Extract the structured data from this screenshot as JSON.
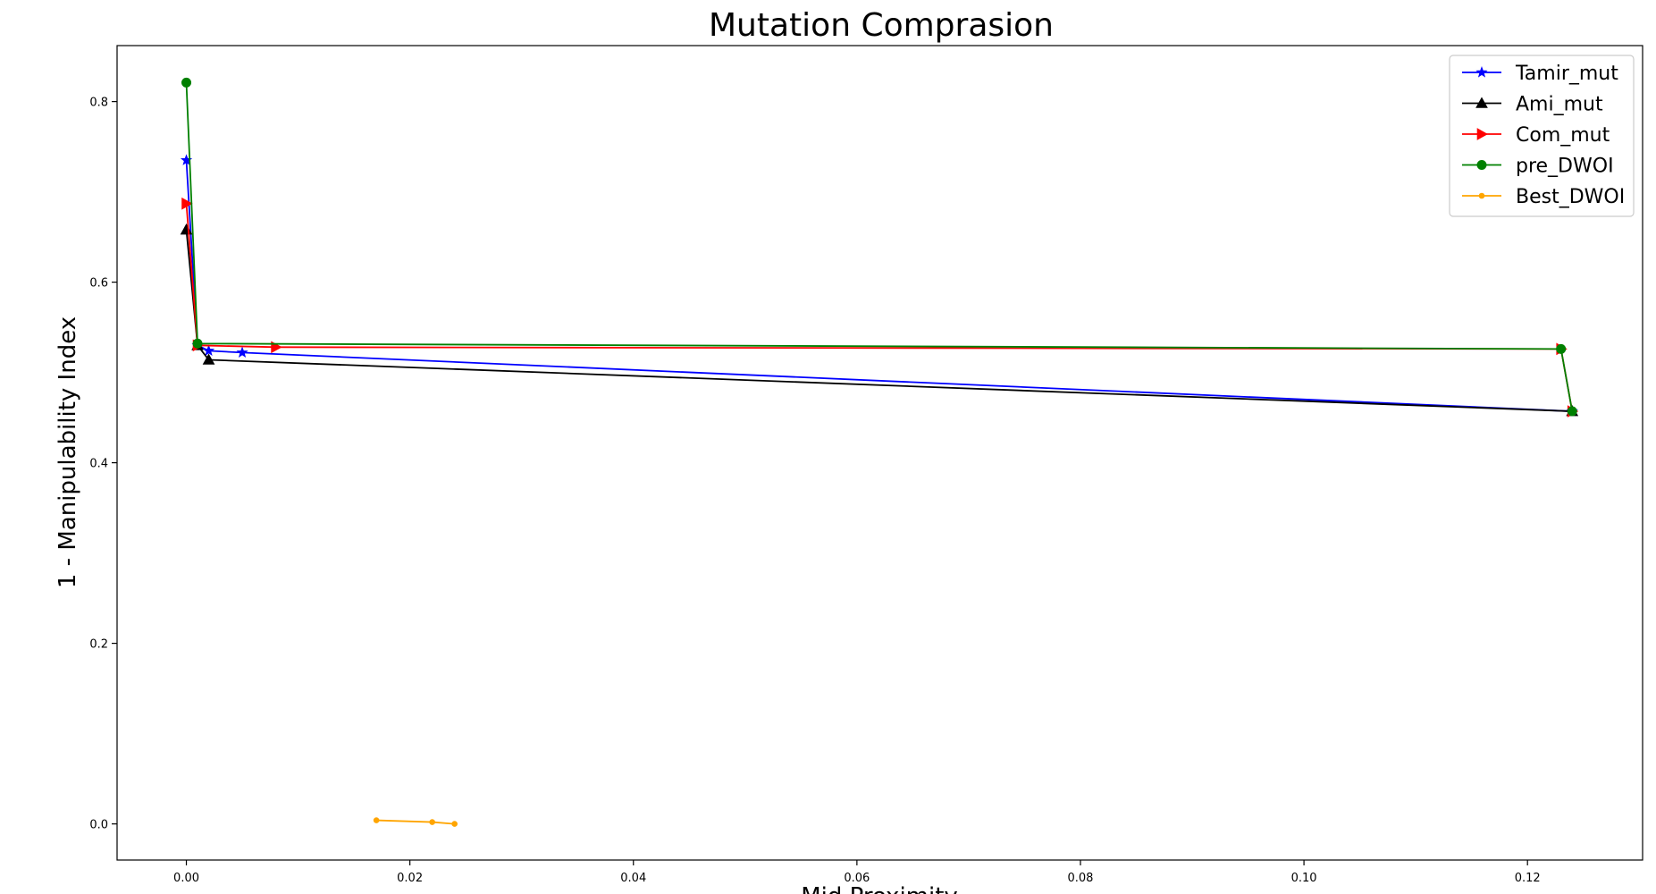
{
  "chart_data": {
    "type": "line",
    "title": "Mutation Comprasion",
    "xlabel": "Mid Proximity",
    "ylabel": "1 - Manipulability Index",
    "xlim": [
      -0.0062,
      0.1303
    ],
    "ylim": [
      -0.04,
      0.862
    ],
    "xticks": [
      0.0,
      0.02,
      0.04,
      0.06,
      0.08,
      0.1,
      0.12
    ],
    "xtick_labels": [
      "0.00",
      "0.02",
      "0.04",
      "0.06",
      "0.08",
      "0.10",
      "0.12"
    ],
    "yticks": [
      0.0,
      0.2,
      0.4,
      0.6,
      0.8
    ],
    "ytick_labels": [
      "0.0",
      "0.2",
      "0.4",
      "0.6",
      "0.8"
    ],
    "grid": false,
    "legend_position": "top-right",
    "series": [
      {
        "name": "Tamir_mut",
        "color": "#0000ff",
        "marker": "star",
        "points": [
          [
            0.0,
            0.735
          ],
          [
            0.001,
            0.53
          ],
          [
            0.002,
            0.524
          ],
          [
            0.005,
            0.522
          ],
          [
            0.124,
            0.457
          ]
        ]
      },
      {
        "name": "Ami_mut",
        "color": "#000000",
        "marker": "triangle-up",
        "points": [
          [
            0.0,
            0.658
          ],
          [
            0.001,
            0.53
          ],
          [
            0.002,
            0.514
          ],
          [
            0.124,
            0.457
          ]
        ]
      },
      {
        "name": "Com_mut",
        "color": "#ff0000",
        "marker": "triangle-right",
        "points": [
          [
            0.0,
            0.687
          ],
          [
            0.001,
            0.53
          ],
          [
            0.008,
            0.528
          ],
          [
            0.123,
            0.526
          ],
          [
            0.124,
            0.457
          ]
        ]
      },
      {
        "name": "pre_DWOI",
        "color": "#008000",
        "marker": "circle",
        "points": [
          [
            0.0,
            0.821
          ],
          [
            0.001,
            0.532
          ],
          [
            0.123,
            0.526
          ],
          [
            0.124,
            0.457
          ]
        ]
      },
      {
        "name": "Best_DWOI",
        "color": "#ffa500",
        "marker": "point",
        "points": [
          [
            0.017,
            0.004
          ],
          [
            0.022,
            0.002
          ],
          [
            0.024,
            0.0
          ]
        ]
      }
    ]
  }
}
